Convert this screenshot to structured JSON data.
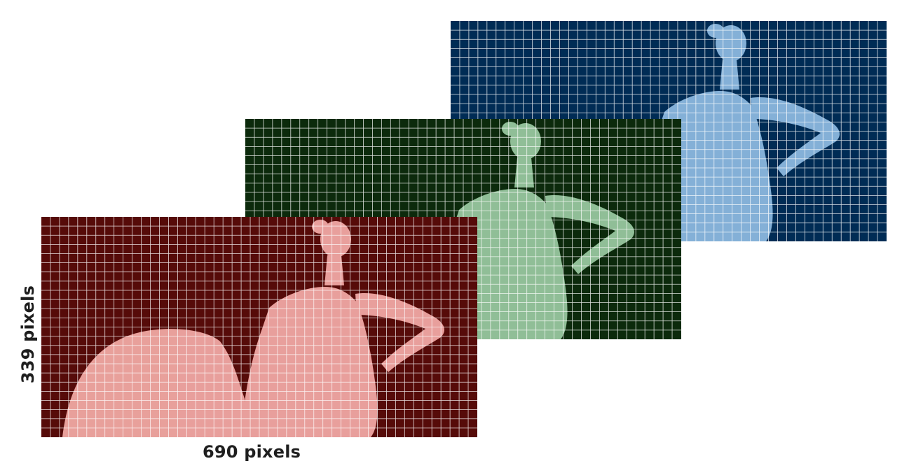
{
  "labels": {
    "width": "690 pixels",
    "height": "339 pixels"
  },
  "grid": {
    "columns": 48,
    "rows": 24,
    "line_color": "#ffffff"
  },
  "channels": [
    {
      "name": "blue-channel",
      "background": "#002c55",
      "figure": "#9cc8ee"
    },
    {
      "name": "green-channel",
      "background": "#0c2a0c",
      "figure": "#a8d8b0"
    },
    {
      "name": "red-channel",
      "background": "#560b09",
      "figure": "#f8b0ac"
    }
  ]
}
